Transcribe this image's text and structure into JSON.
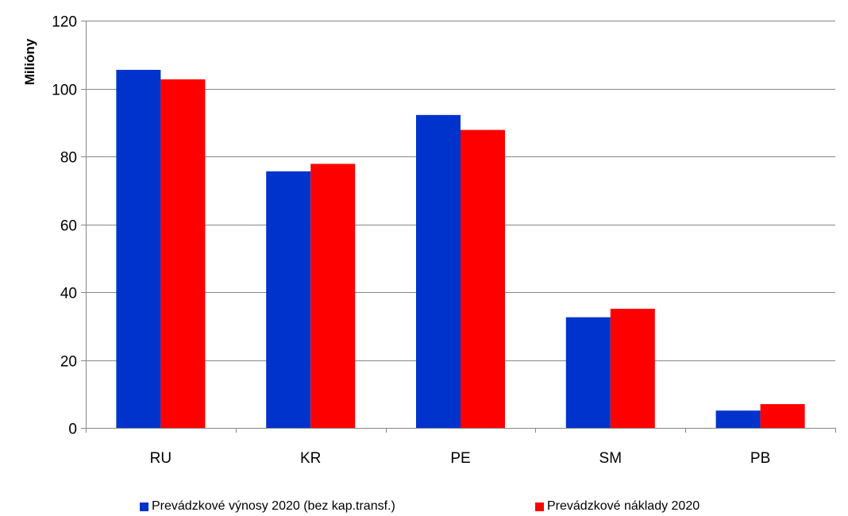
{
  "chart_data": {
    "type": "bar",
    "categories": [
      "RU",
      "KR",
      "PE",
      "SM",
      "PB"
    ],
    "series": [
      {
        "name": "Prevádzkové výnosy 2020 (bez kap.transf.)",
        "color": "#0033cc",
        "values": [
          105.5,
          75.6,
          92.2,
          32.6,
          5.1
        ]
      },
      {
        "name": "Prevádzkové náklady 2020",
        "color": "#ff0000",
        "values": [
          102.7,
          77.8,
          87.8,
          35.1,
          7.0
        ]
      }
    ],
    "ylabel": "Milióny",
    "xlabel": "",
    "ylim": [
      0,
      120
    ],
    "yticks": [
      "0",
      "20",
      "40",
      "60",
      "80",
      "100",
      "120"
    ],
    "grid": true,
    "legend_position": "bottom"
  }
}
